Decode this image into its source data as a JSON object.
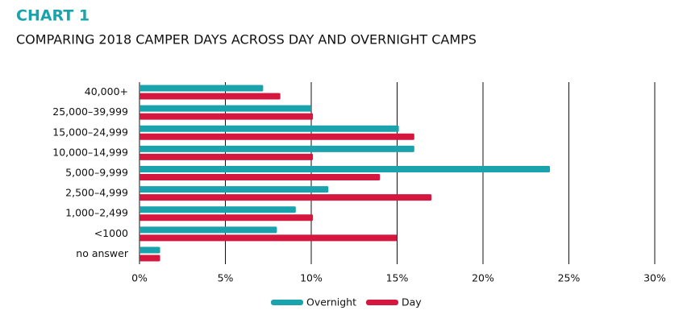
{
  "chart_data": {
    "type": "hbar",
    "title": "CHART 1",
    "subtitle": "COMPARING 2018 CAMPER DAYS ACROSS DAY AND OVERNIGHT CAMPS",
    "categories": [
      "40,000+",
      "25,000–39,999",
      "15,000–24,999",
      "10,000–14,999",
      "5,000–9,999",
      "2,500–4,999",
      "1,000–2,499",
      "<1000",
      "no answer"
    ],
    "series": [
      {
        "name": "Overnight",
        "color": "#1aa3ad",
        "values": [
          7.2,
          10,
          15.1,
          16,
          23.9,
          11,
          9.1,
          8,
          1.2
        ]
      },
      {
        "name": "Day",
        "color": "#d5173f",
        "values": [
          8.2,
          10.1,
          16,
          10.1,
          14,
          17,
          10.1,
          15,
          1.2
        ]
      }
    ],
    "xlim": [
      0,
      30
    ],
    "xticks": [
      {
        "value": 0,
        "label": "0%"
      },
      {
        "value": 5,
        "label": "5%"
      },
      {
        "value": 10,
        "label": "10%"
      },
      {
        "value": 15,
        "label": "15%"
      },
      {
        "value": 20,
        "label": "20%"
      },
      {
        "value": 25,
        "label": "25%"
      },
      {
        "value": 30,
        "label": "30%"
      }
    ],
    "grid": true
  }
}
